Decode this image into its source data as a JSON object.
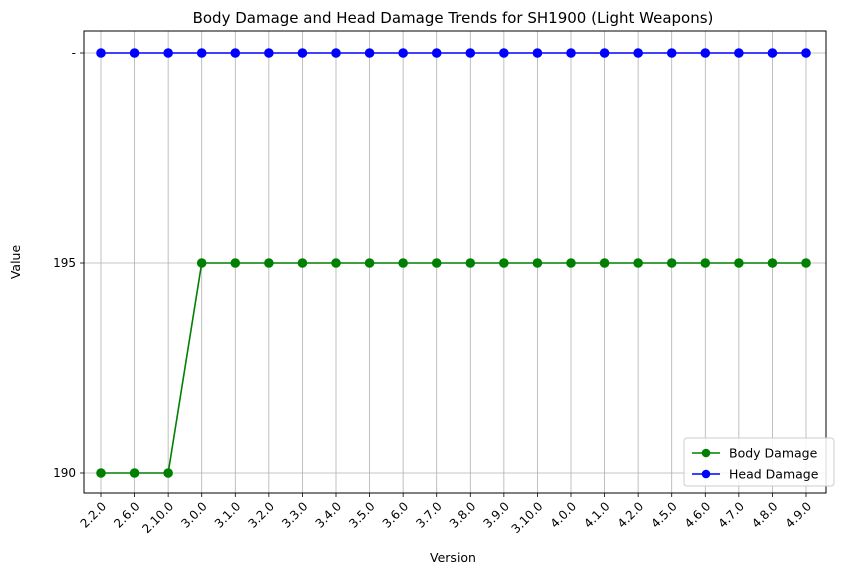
{
  "chart_data": {
    "type": "line",
    "title": "Body Damage and Head Damage Trends for SH1900 (Light Weapons)",
    "xlabel": "Version",
    "ylabel": "Value",
    "categories": [
      "2.2.0",
      "2.6.0",
      "2.10.0",
      "3.0.0",
      "3.1.0",
      "3.2.0",
      "3.3.0",
      "3.4.0",
      "3.5.0",
      "3.6.0",
      "3.7.0",
      "3.8.0",
      "3.9.0",
      "3.10.0",
      "4.0.0",
      "4.1.0",
      "4.2.0",
      "4.5.0",
      "4.6.0",
      "4.7.0",
      "4.8.0",
      "4.9.0"
    ],
    "y_categories": [
      "190",
      "195",
      "-"
    ],
    "series": [
      {
        "name": "Body Damage",
        "color": "#008000",
        "values": [
          "190",
          "190",
          "190",
          "195",
          "195",
          "195",
          "195",
          "195",
          "195",
          "195",
          "195",
          "195",
          "195",
          "195",
          "195",
          "195",
          "195",
          "195",
          "195",
          "195",
          "195",
          "195"
        ]
      },
      {
        "name": "Head Damage",
        "color": "#0000ff",
        "values": [
          "-",
          "-",
          "-",
          "-",
          "-",
          "-",
          "-",
          "-",
          "-",
          "-",
          "-",
          "-",
          "-",
          "-",
          "-",
          "-",
          "-",
          "-",
          "-",
          "-",
          "-",
          "-"
        ]
      }
    ],
    "grid": true,
    "legend_position": "bottom-right",
    "marker": "circle"
  }
}
